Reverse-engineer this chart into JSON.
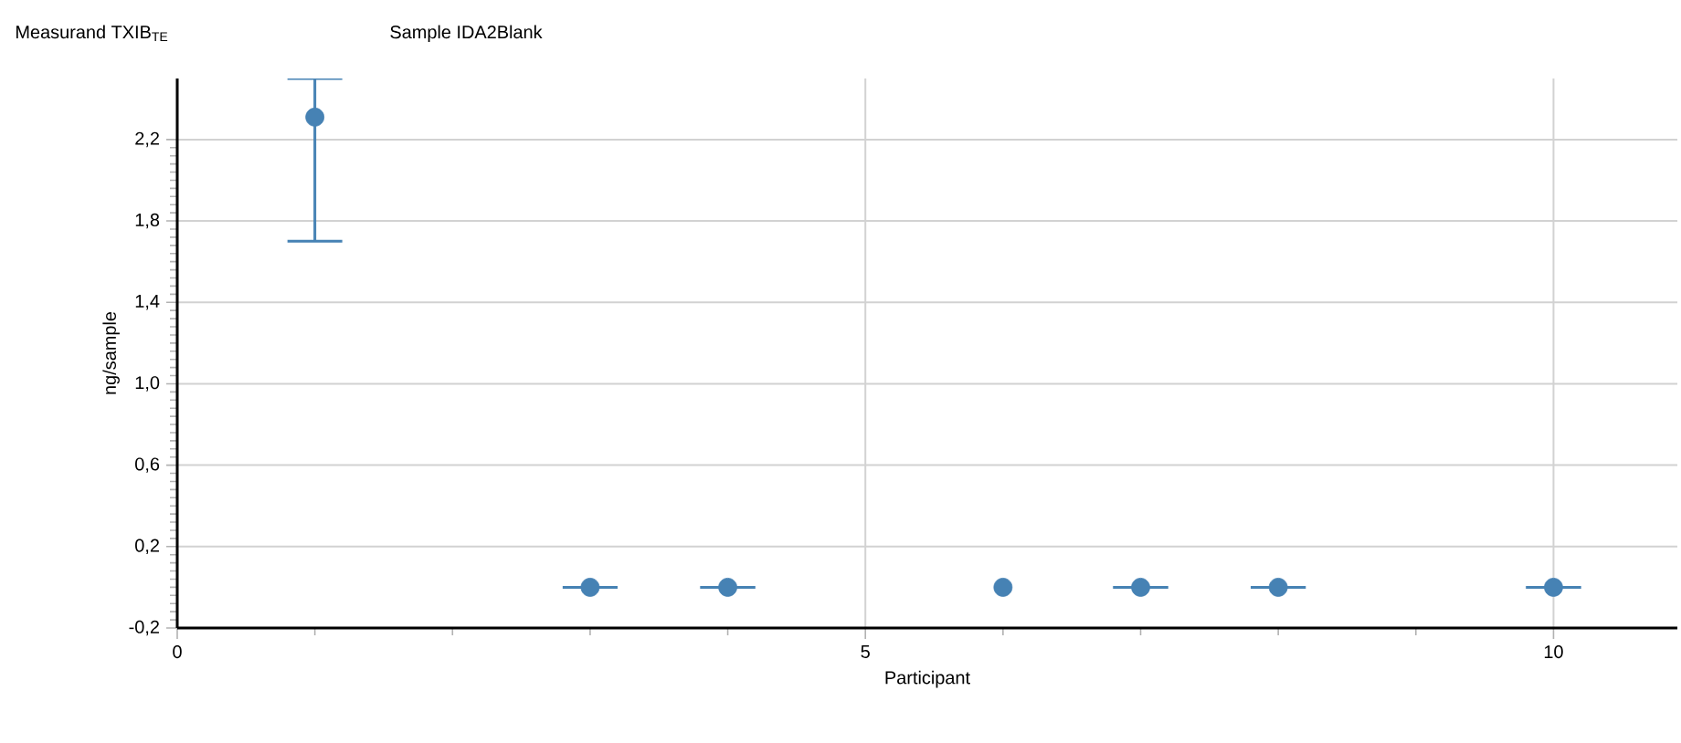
{
  "chart_data": {
    "type": "scatter",
    "title": "Measurand  TXIB$_{TE}$",
    "subtitle": "Sample  IDA2Blank",
    "xlabel": "Participant",
    "ylabel": "ng/sample",
    "x": [
      1,
      3,
      4,
      6,
      7,
      8,
      10
    ],
    "values": [
      2.31,
      0.0,
      0.0,
      0.0,
      0.0,
      0.0,
      0.0
    ],
    "errors": [
      [
        1.7,
        2.5
      ],
      0,
      0,
      null,
      0,
      0,
      0
    ],
    "color": "#4682b4",
    "marker": "circle",
    "xlim": [
      0,
      10.9
    ],
    "xticks": [
      0,
      5,
      10
    ],
    "ylim": [
      -0.2,
      2.5
    ],
    "yticks": [
      {
        "value": -0.2,
        "label": "-0,2"
      },
      {
        "value": 0.2,
        "label": "0,2"
      },
      {
        "value": 0.6,
        "label": "0,6"
      },
      {
        "value": 1.0,
        "label": "1,0"
      },
      {
        "value": 1.4,
        "label": "1,4"
      },
      {
        "value": 1.8,
        "label": "1,8"
      },
      {
        "value": 2.2,
        "label": "2,2"
      }
    ],
    "grid": true
  }
}
